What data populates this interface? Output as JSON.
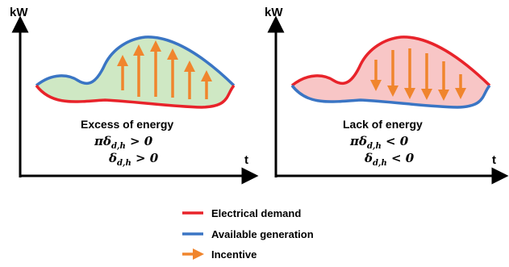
{
  "colors": {
    "demand": "#e8232a",
    "generation": "#3a75c4",
    "incentive": "#f0852d",
    "excess_fill": "#cfe8c4",
    "lack_fill": "#f8c6c6"
  },
  "left_panel": {
    "y_axis_label": "kW",
    "x_axis_label": "t",
    "title": "Excess of energy",
    "eq1_lhs": "πδ",
    "eq1_sub": "d,h",
    "eq1_rhs": " > 0",
    "eq2_lhs": "δ",
    "eq2_sub": "d,h",
    "eq2_rhs": " > 0",
    "arrow_direction": "up"
  },
  "right_panel": {
    "y_axis_label": "kW",
    "x_axis_label": "t",
    "title": "Lack of energy",
    "eq1_lhs": "πδ",
    "eq1_sub": "d,h",
    "eq1_rhs": " < 0",
    "eq2_lhs": "δ",
    "eq2_sub": "d,h",
    "eq2_rhs": " < 0",
    "arrow_direction": "down"
  },
  "legend": [
    {
      "label": "Electrical demand",
      "type": "line",
      "color_key": "demand"
    },
    {
      "label": "Available generation",
      "type": "line",
      "color_key": "generation"
    },
    {
      "label": "Incentive",
      "type": "arrow",
      "color_key": "incentive"
    }
  ]
}
